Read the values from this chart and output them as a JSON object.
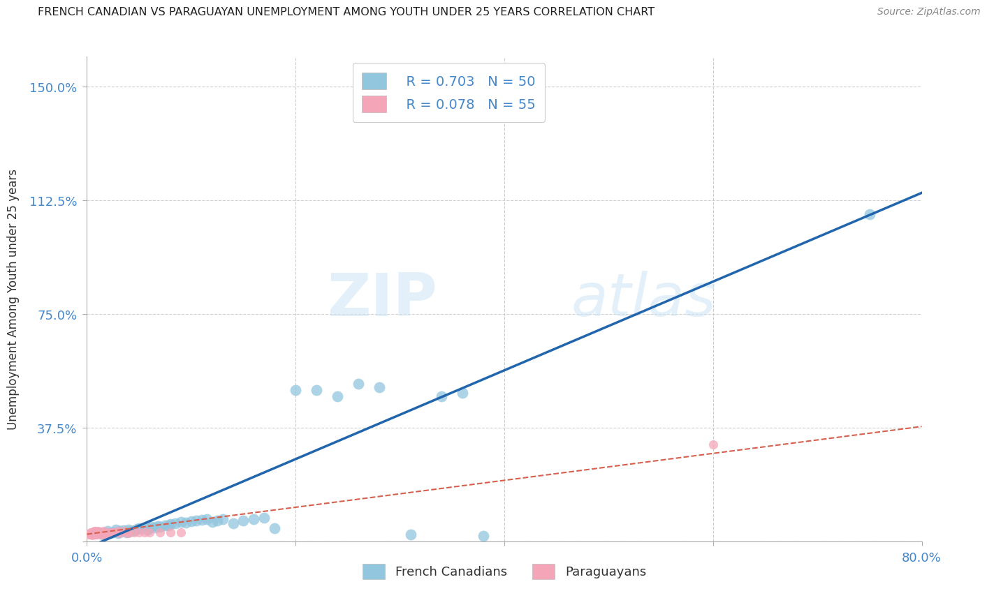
{
  "title": "FRENCH CANADIAN VS PARAGUAYAN UNEMPLOYMENT AMONG YOUTH UNDER 25 YEARS CORRELATION CHART",
  "source": "Source: ZipAtlas.com",
  "ylabel": "Unemployment Among Youth under 25 years",
  "xlim": [
    0.0,
    0.8
  ],
  "ylim": [
    0.0,
    1.6
  ],
  "xticks": [
    0.0,
    0.2,
    0.4,
    0.6,
    0.8
  ],
  "yticks": [
    0.0,
    0.375,
    0.75,
    1.125,
    1.5
  ],
  "xticklabels": [
    "0.0%",
    "",
    "",
    "",
    "80.0%"
  ],
  "yticklabels": [
    "",
    "37.5%",
    "75.0%",
    "112.5%",
    "150.0%"
  ],
  "blue_color": "#92c5de",
  "pink_color": "#f4a6b8",
  "blue_line_color": "#2166ac",
  "pink_line_color": "#d6604d",
  "legend_R_blue": "R = 0.703",
  "legend_N_blue": "N = 50",
  "legend_R_pink": "R = 0.078",
  "legend_N_pink": "N = 55",
  "legend_label_blue": "French Canadians",
  "legend_label_pink": "Paraguayans",
  "watermark_zip": "ZIP",
  "watermark_atlas": "atlas",
  "grid_color": "#cccccc",
  "background_color": "#ffffff",
  "title_color": "#222222",
  "axis_color": "#4488cc",
  "blue_x": [
    0.01,
    0.015,
    0.02,
    0.022,
    0.025,
    0.028,
    0.03,
    0.032,
    0.035,
    0.038,
    0.04,
    0.042,
    0.045,
    0.048,
    0.05,
    0.055,
    0.058,
    0.06,
    0.062,
    0.065,
    0.068,
    0.07,
    0.075,
    0.078,
    0.08,
    0.085,
    0.09,
    0.095,
    0.1,
    0.105,
    0.11,
    0.115,
    0.12,
    0.125,
    0.13,
    0.14,
    0.15,
    0.16,
    0.17,
    0.18,
    0.2,
    0.22,
    0.24,
    0.26,
    0.28,
    0.31,
    0.34,
    0.36,
    0.38,
    0.75
  ],
  "blue_y": [
    0.03,
    0.025,
    0.035,
    0.028,
    0.03,
    0.04,
    0.028,
    0.035,
    0.038,
    0.032,
    0.04,
    0.035,
    0.038,
    0.042,
    0.045,
    0.048,
    0.04,
    0.045,
    0.05,
    0.048,
    0.052,
    0.05,
    0.055,
    0.055,
    0.058,
    0.06,
    0.065,
    0.062,
    0.068,
    0.07,
    0.072,
    0.075,
    0.065,
    0.07,
    0.075,
    0.06,
    0.07,
    0.075,
    0.08,
    0.045,
    0.5,
    0.5,
    0.48,
    0.52,
    0.51,
    0.025,
    0.48,
    0.49,
    0.02,
    1.08
  ],
  "pink_x": [
    0.002,
    0.003,
    0.004,
    0.004,
    0.005,
    0.005,
    0.005,
    0.006,
    0.006,
    0.007,
    0.007,
    0.008,
    0.008,
    0.008,
    0.009,
    0.009,
    0.01,
    0.01,
    0.01,
    0.011,
    0.011,
    0.012,
    0.012,
    0.013,
    0.013,
    0.014,
    0.014,
    0.015,
    0.015,
    0.016,
    0.016,
    0.017,
    0.018,
    0.018,
    0.019,
    0.02,
    0.021,
    0.022,
    0.023,
    0.025,
    0.026,
    0.028,
    0.03,
    0.032,
    0.035,
    0.038,
    0.04,
    0.045,
    0.05,
    0.055,
    0.06,
    0.07,
    0.08,
    0.09,
    0.6
  ],
  "pink_y": [
    0.025,
    0.028,
    0.025,
    0.03,
    0.022,
    0.028,
    0.032,
    0.025,
    0.03,
    0.028,
    0.035,
    0.025,
    0.03,
    0.035,
    0.028,
    0.032,
    0.025,
    0.028,
    0.032,
    0.028,
    0.035,
    0.028,
    0.03,
    0.025,
    0.03,
    0.028,
    0.032,
    0.025,
    0.03,
    0.028,
    0.035,
    0.028,
    0.03,
    0.032,
    0.028,
    0.025,
    0.028,
    0.03,
    0.028,
    0.032,
    0.03,
    0.03,
    0.035,
    0.028,
    0.035,
    0.03,
    0.028,
    0.032,
    0.03,
    0.032,
    0.03,
    0.032,
    0.03,
    0.032,
    0.32
  ],
  "blue_line_x0": 0.0,
  "blue_line_x1": 0.8,
  "blue_line_y0": -0.02,
  "blue_line_y1": 1.15,
  "pink_line_x0": 0.0,
  "pink_line_x1": 0.8,
  "pink_line_y0": 0.025,
  "pink_line_y1": 0.38
}
